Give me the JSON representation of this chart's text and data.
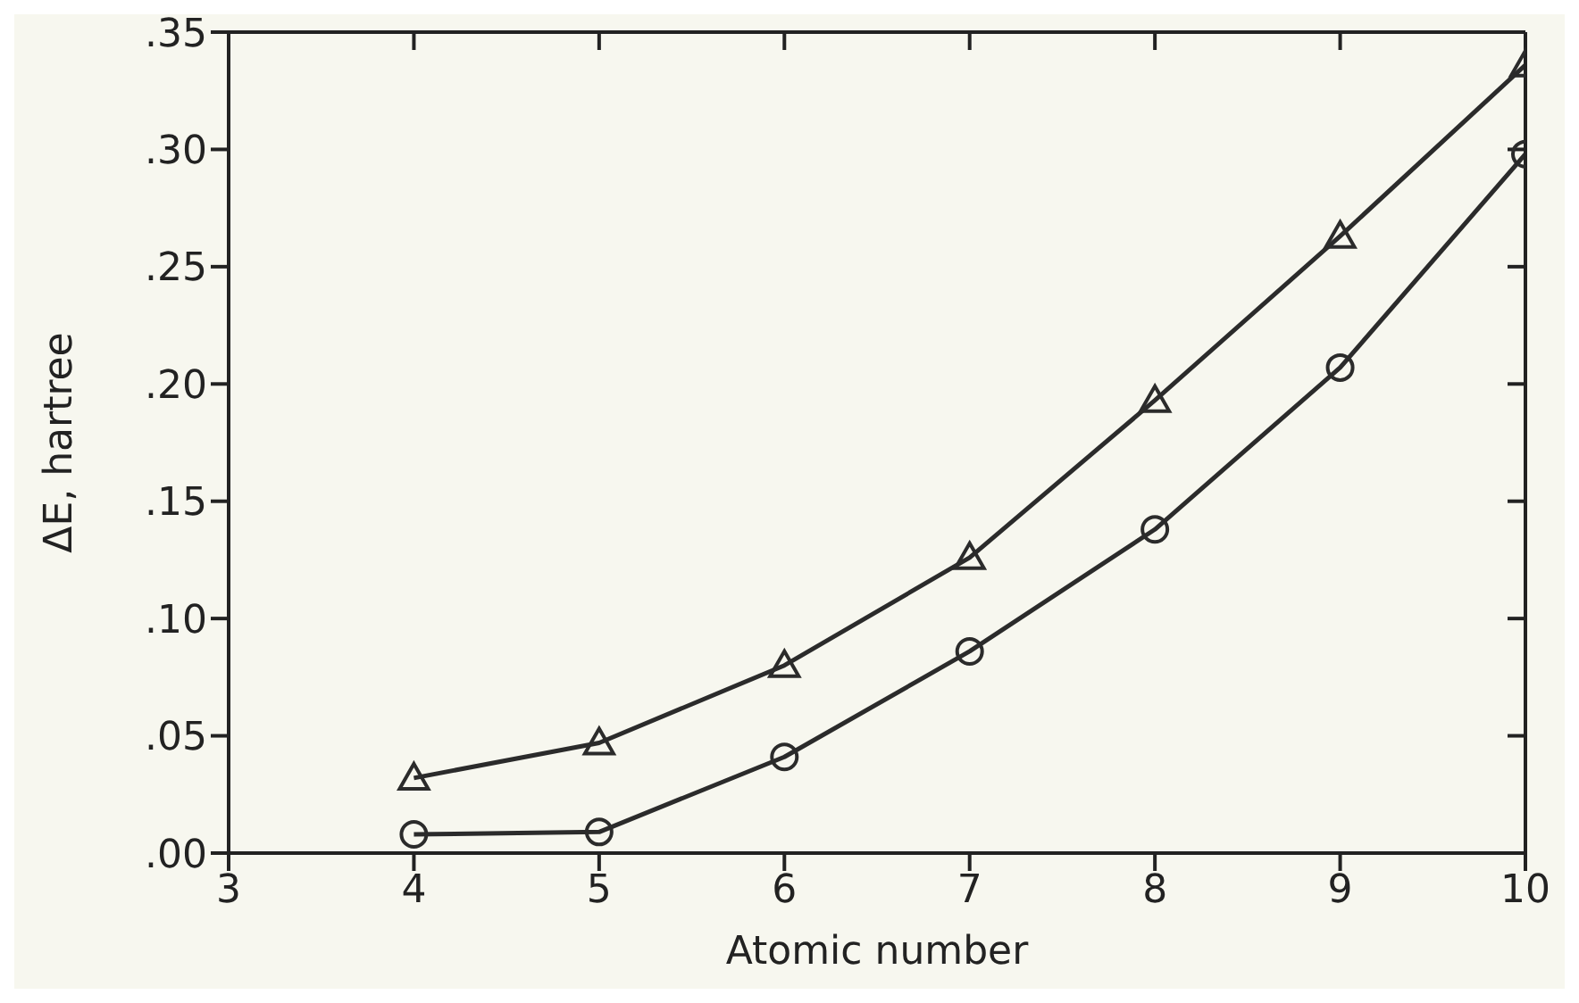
{
  "chart_data": {
    "type": "line",
    "xlabel": "Atomic number",
    "ylabel": "ΔE, hartree",
    "x": [
      4,
      5,
      6,
      7,
      8,
      9,
      10
    ],
    "series": [
      {
        "color": "#2b2b2b",
        "marker": "triangle",
        "values": [
          0.032,
          0.047,
          0.08,
          0.126,
          0.193,
          0.263,
          0.336
        ]
      },
      {
        "color": "#2b2b2b",
        "marker": "circle",
        "values": [
          0.008,
          0.009,
          0.041,
          0.086,
          0.138,
          0.207,
          0.298
        ]
      }
    ],
    "xlim": [
      3,
      10
    ],
    "xticks": [
      3,
      4,
      5,
      6,
      7,
      8,
      9,
      10
    ],
    "ylim": [
      0,
      0.35
    ],
    "yticks": [
      {
        "value": 0,
        "label": ".00"
      },
      {
        "value": 0.05,
        "label": ".05"
      },
      {
        "value": 0.1,
        "label": ".10"
      },
      {
        "value": 0.15,
        "label": ".15"
      },
      {
        "value": 0.2,
        "label": ".20"
      },
      {
        "value": 0.25,
        "label": ".25"
      },
      {
        "value": 0.3,
        "label": ".30"
      },
      {
        "value": 0.35,
        "label": ".35"
      }
    ],
    "grid": false,
    "line_style": "solid"
  }
}
